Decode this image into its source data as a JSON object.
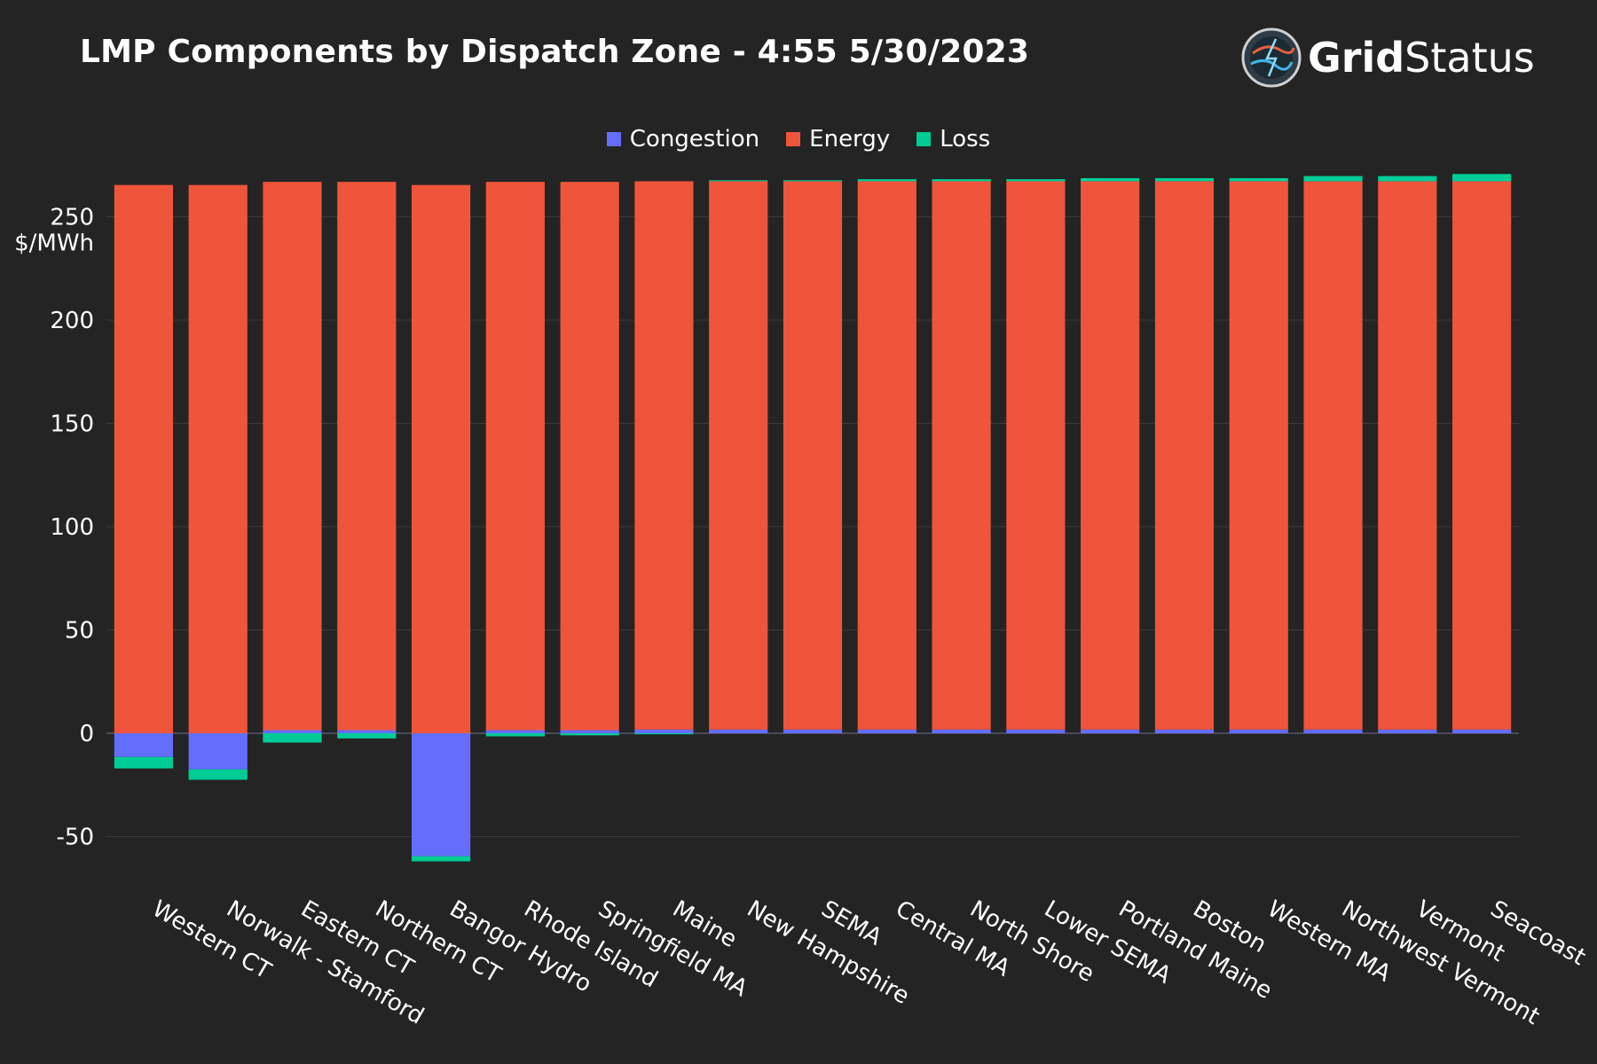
{
  "title": "LMP Components by Dispatch Zone - 4:55 5/30/2023",
  "brand": {
    "part1": "Grid",
    "part2": "Status"
  },
  "colors": {
    "background": "#242424",
    "grid": "#3a3a3a",
    "zeroline": "#4a4a5a",
    "text": "#ffffff"
  },
  "chart_data": {
    "type": "bar",
    "stacked": true,
    "ylabel": "$/MWh",
    "ylim": [
      -70,
      270
    ],
    "yticks": [
      -50,
      0,
      50,
      100,
      150,
      200,
      250
    ],
    "grid": true,
    "legend_position": "top-center",
    "categories": [
      "Western CT",
      "Norwalk - Stamford",
      "Eastern CT",
      "Northern CT",
      "Bangor Hydro",
      "Rhode Island",
      "Springfield MA",
      "Maine",
      "New Hampshire",
      "SEMA",
      "Central MA",
      "North Shore",
      "Lower SEMA",
      "Portland Maine",
      "Boston",
      "Western MA",
      "Northwest Vermont",
      "Vermont",
      "Seacoast"
    ],
    "series": [
      {
        "name": "Congestion",
        "color": "#636efa",
        "values": [
          -11.5,
          -17.5,
          1.5,
          1.5,
          -59.5,
          1.5,
          1.5,
          1.8,
          1.8,
          1.8,
          1.8,
          1.8,
          1.8,
          1.8,
          1.8,
          1.8,
          1.8,
          1.8,
          1.8
        ]
      },
      {
        "name": "Energy",
        "color": "#ef553b",
        "values": [
          265.4,
          265.4,
          265.4,
          265.4,
          265.4,
          265.4,
          265.4,
          265.4,
          265.4,
          265.4,
          265.4,
          265.4,
          265.4,
          265.4,
          265.4,
          265.4,
          265.4,
          265.4,
          265.4
        ]
      },
      {
        "name": "Loss",
        "color": "#00cc96",
        "values": [
          -5.5,
          -5.0,
          -4.5,
          -2.5,
          -2.5,
          -1.5,
          -1.0,
          -0.5,
          0.5,
          0.5,
          1.0,
          1.0,
          1.0,
          1.5,
          1.5,
          1.5,
          2.5,
          2.5,
          3.5
        ]
      }
    ]
  }
}
